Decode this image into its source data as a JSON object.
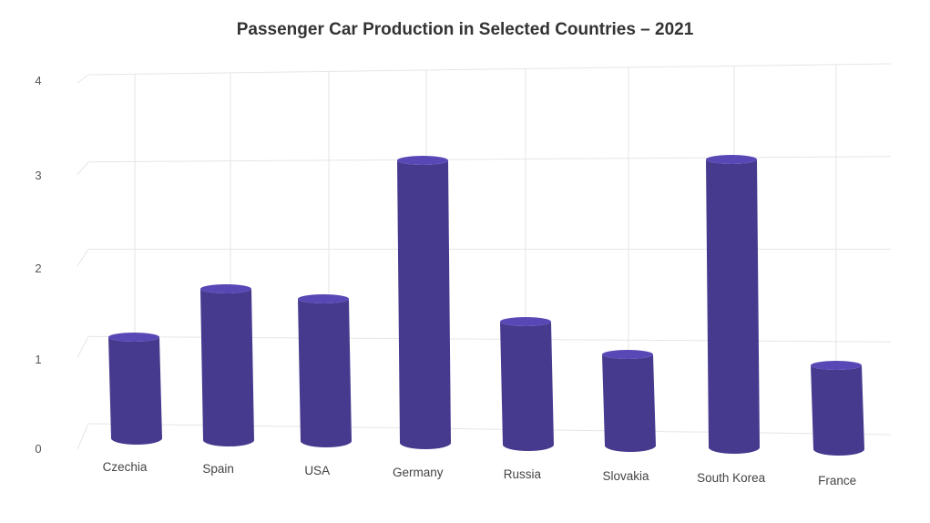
{
  "chart_data": {
    "type": "bar",
    "title": "Passenger Car Production in Selected Countries – 2021",
    "xlabel": "",
    "ylabel": "",
    "categories": [
      "Czechia",
      "Spain",
      "USA",
      "Germany",
      "Russia",
      "Slovakia",
      "South Korea",
      "France"
    ],
    "values": [
      1.11,
      1.66,
      1.56,
      3.1,
      1.35,
      1.0,
      3.16,
      0.92
    ],
    "ylim": [
      0,
      4
    ],
    "yticks": [
      "0",
      "1",
      "2",
      "3",
      "4"
    ],
    "bar_shape": "cylinder",
    "perspective": "3d",
    "grid": true,
    "legend": "none",
    "colors": {
      "bar": "#463a8f",
      "bar_top": "#5848b5",
      "grid": "#e6e6e6"
    }
  }
}
